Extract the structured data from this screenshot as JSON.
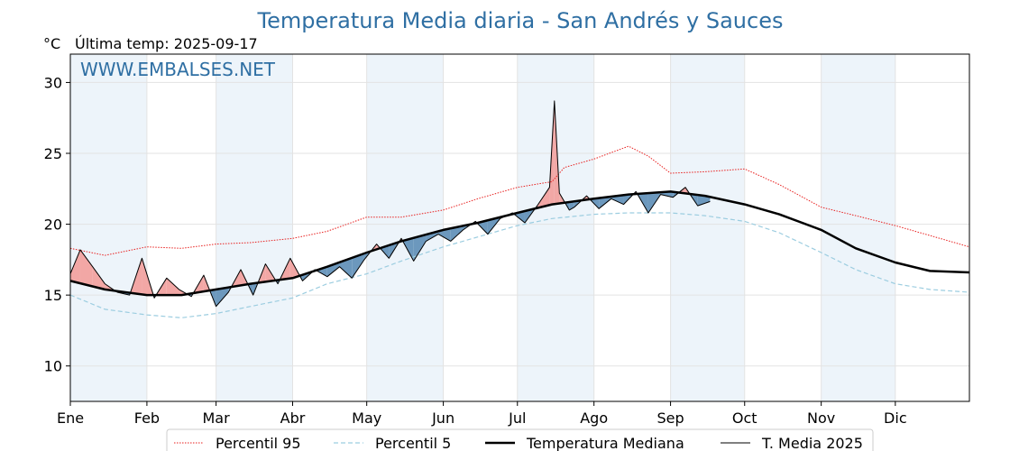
{
  "chart_data": {
    "type": "line",
    "title": "Temperatura Media diaria - San Andrés y Sauces",
    "subtitle": "Última temp: 2025-09-17",
    "unit": "°C",
    "watermark": "WWW.EMBALSES.NET",
    "ylim": [
      7.5,
      32
    ],
    "yticks": [
      10,
      15,
      20,
      25,
      30
    ],
    "months": [
      "Ene",
      "Feb",
      "Mar",
      "Abr",
      "May",
      "Jun",
      "Jul",
      "Ago",
      "Sep",
      "Oct",
      "Nov",
      "Dic"
    ],
    "grid": true,
    "legend_position": "bottom",
    "colors": {
      "p95": "#e8201f",
      "p5": "#9ccde0",
      "median": "#000000",
      "current": "#000000",
      "above": "#f2a7a5",
      "below": "#6c98bd",
      "band": "#edf4fa",
      "title": "#2f6fa3"
    },
    "series": [
      {
        "name": "Percentil 95",
        "style": "dotted-red",
        "x_day": [
          1,
          15,
          32,
          46,
          60,
          74,
          91,
          105,
          121,
          135,
          152,
          166,
          182,
          196,
          201,
          213,
          227,
          235,
          244,
          258,
          274,
          288,
          305,
          319,
          335,
          349,
          365
        ],
        "values": [
          18.3,
          17.8,
          18.4,
          18.3,
          18.6,
          18.7,
          19.0,
          19.5,
          20.5,
          20.5,
          21.0,
          21.8,
          22.6,
          23.0,
          24.0,
          24.6,
          25.5,
          24.8,
          23.6,
          23.7,
          23.9,
          22.8,
          21.2,
          20.6,
          19.9,
          19.2,
          18.4
        ]
      },
      {
        "name": "Percentil 5",
        "style": "dashed-lightblue",
        "x_day": [
          1,
          15,
          32,
          46,
          60,
          74,
          91,
          105,
          121,
          135,
          152,
          166,
          182,
          196,
          213,
          227,
          244,
          258,
          274,
          288,
          305,
          319,
          335,
          349,
          365
        ],
        "values": [
          15.0,
          14.0,
          13.6,
          13.4,
          13.7,
          14.2,
          14.8,
          15.8,
          16.5,
          17.4,
          18.4,
          19.1,
          19.9,
          20.4,
          20.7,
          20.8,
          20.8,
          20.6,
          20.2,
          19.4,
          18.0,
          16.8,
          15.8,
          15.4,
          15.2
        ]
      },
      {
        "name": "Temperatura Mediana",
        "style": "solid-black-thick",
        "x_day": [
          1,
          15,
          32,
          46,
          60,
          74,
          91,
          105,
          121,
          135,
          152,
          166,
          182,
          196,
          213,
          227,
          244,
          258,
          274,
          288,
          305,
          319,
          335,
          349,
          365
        ],
        "values": [
          16.0,
          15.4,
          15.0,
          15.0,
          15.4,
          15.8,
          16.2,
          17.0,
          18.0,
          18.8,
          19.6,
          20.1,
          20.8,
          21.4,
          21.8,
          22.1,
          22.3,
          22.0,
          21.4,
          20.7,
          19.6,
          18.3,
          17.3,
          16.7,
          16.6
        ]
      },
      {
        "name": "T. Media 2025",
        "style": "solid-black-thin",
        "x_day": [
          1,
          5,
          10,
          15,
          20,
          25,
          30,
          35,
          40,
          45,
          50,
          55,
          60,
          65,
          70,
          75,
          80,
          85,
          90,
          95,
          100,
          105,
          110,
          115,
          120,
          125,
          130,
          135,
          140,
          145,
          150,
          155,
          160,
          165,
          170,
          175,
          180,
          185,
          190,
          195,
          197,
          199,
          203,
          205,
          210,
          215,
          220,
          225,
          230,
          235,
          240,
          245,
          250,
          255,
          260
        ],
        "values": [
          16.5,
          18.2,
          17.0,
          15.8,
          15.2,
          15.0,
          17.6,
          14.8,
          16.2,
          15.4,
          14.9,
          16.4,
          14.2,
          15.2,
          16.8,
          15.0,
          17.2,
          15.8,
          17.6,
          16.0,
          16.8,
          16.3,
          17.0,
          16.2,
          17.5,
          18.6,
          17.6,
          19.0,
          17.4,
          18.8,
          19.3,
          18.8,
          19.6,
          20.2,
          19.3,
          20.4,
          20.8,
          20.1,
          21.3,
          22.6,
          28.7,
          22.2,
          21.0,
          21.2,
          22.0,
          21.1,
          21.8,
          21.4,
          22.3,
          20.8,
          22.1,
          21.9,
          22.6,
          21.3,
          21.6
        ]
      }
    ]
  }
}
